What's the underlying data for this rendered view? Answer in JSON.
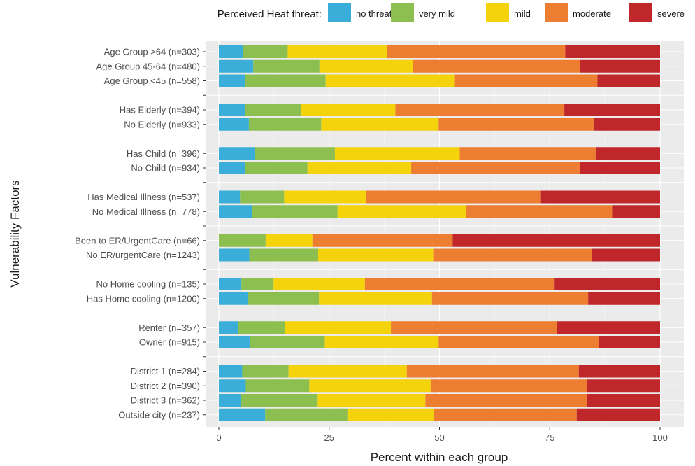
{
  "chart_data": {
    "type": "bar",
    "orientation": "horizontal-stacked",
    "xlabel": "Percent within each group",
    "ylabel": "Vulnerability Factors",
    "xlim": [
      0,
      100
    ],
    "xticks": [
      0,
      25,
      50,
      75,
      100
    ],
    "grid": true,
    "legend": {
      "title": "Perceived Heat threat:",
      "placement": "top",
      "entries": [
        "no threat",
        "very mild",
        "mild",
        "moderate",
        "severe"
      ]
    },
    "colors": [
      "#3aaed8",
      "#8cbf4f",
      "#f4d20c",
      "#ec7d31",
      "#c0272a"
    ],
    "groups": [
      {
        "categories": [
          "Age Group >64 (n=303)",
          "Age Group 45-64 (n=480)",
          "Age Group <45 (n=558)"
        ]
      },
      {
        "categories": [
          "Has Elderly (n=394)",
          "No Elderly (n=933)"
        ]
      },
      {
        "categories": [
          "Has Child (n=396)",
          "No Child (n=934)"
        ]
      },
      {
        "categories": [
          "Has Medical Illness (n=537)",
          "No Medical Illness (n=778)"
        ]
      },
      {
        "categories": [
          "Been to ER/UrgentCare (n=66)",
          "No ER/urgentCare (n=1243)"
        ]
      },
      {
        "categories": [
          "No Home cooling (n=135)",
          "Has Home cooling (n=1200)"
        ]
      },
      {
        "categories": [
          "Renter (n=357)",
          "Owner (n=915)"
        ]
      },
      {
        "categories": [
          "District 1 (n=284)",
          "District 2 (n=390)",
          "District 3 (n=362)",
          "Outside city (n=237)"
        ]
      }
    ],
    "series": [
      {
        "name": "no threat",
        "values": [
          5.5,
          7.8,
          6.0,
          5.9,
          6.8,
          8.1,
          5.9,
          4.8,
          7.6,
          0.0,
          6.9,
          5.1,
          6.6,
          4.3,
          7.1,
          5.3,
          6.1,
          5.0,
          10.5
        ]
      },
      {
        "name": "very mild",
        "values": [
          10.1,
          15.0,
          18.2,
          12.7,
          16.4,
          18.2,
          14.2,
          10.0,
          19.3,
          10.6,
          15.6,
          7.3,
          16.1,
          10.6,
          16.9,
          10.5,
          14.4,
          17.4,
          18.8
        ]
      },
      {
        "name": "mild",
        "values": [
          22.5,
          21.2,
          29.3,
          21.4,
          26.6,
          28.3,
          23.5,
          18.6,
          29.2,
          10.6,
          26.1,
          20.7,
          25.6,
          24.1,
          25.8,
          26.8,
          27.5,
          24.4,
          19.4
        ]
      },
      {
        "name": "moderate",
        "values": [
          40.4,
          37.8,
          32.3,
          38.3,
          35.2,
          30.8,
          38.2,
          39.6,
          33.2,
          31.8,
          36.0,
          43.0,
          35.4,
          37.6,
          36.3,
          39.0,
          35.5,
          36.6,
          32.4
        ]
      },
      {
        "name": "severe",
        "values": [
          21.5,
          18.2,
          14.2,
          21.7,
          15.0,
          14.6,
          18.2,
          27.0,
          10.7,
          47.0,
          15.4,
          23.9,
          16.3,
          23.4,
          13.9,
          18.4,
          16.5,
          16.6,
          18.9
        ]
      }
    ]
  }
}
